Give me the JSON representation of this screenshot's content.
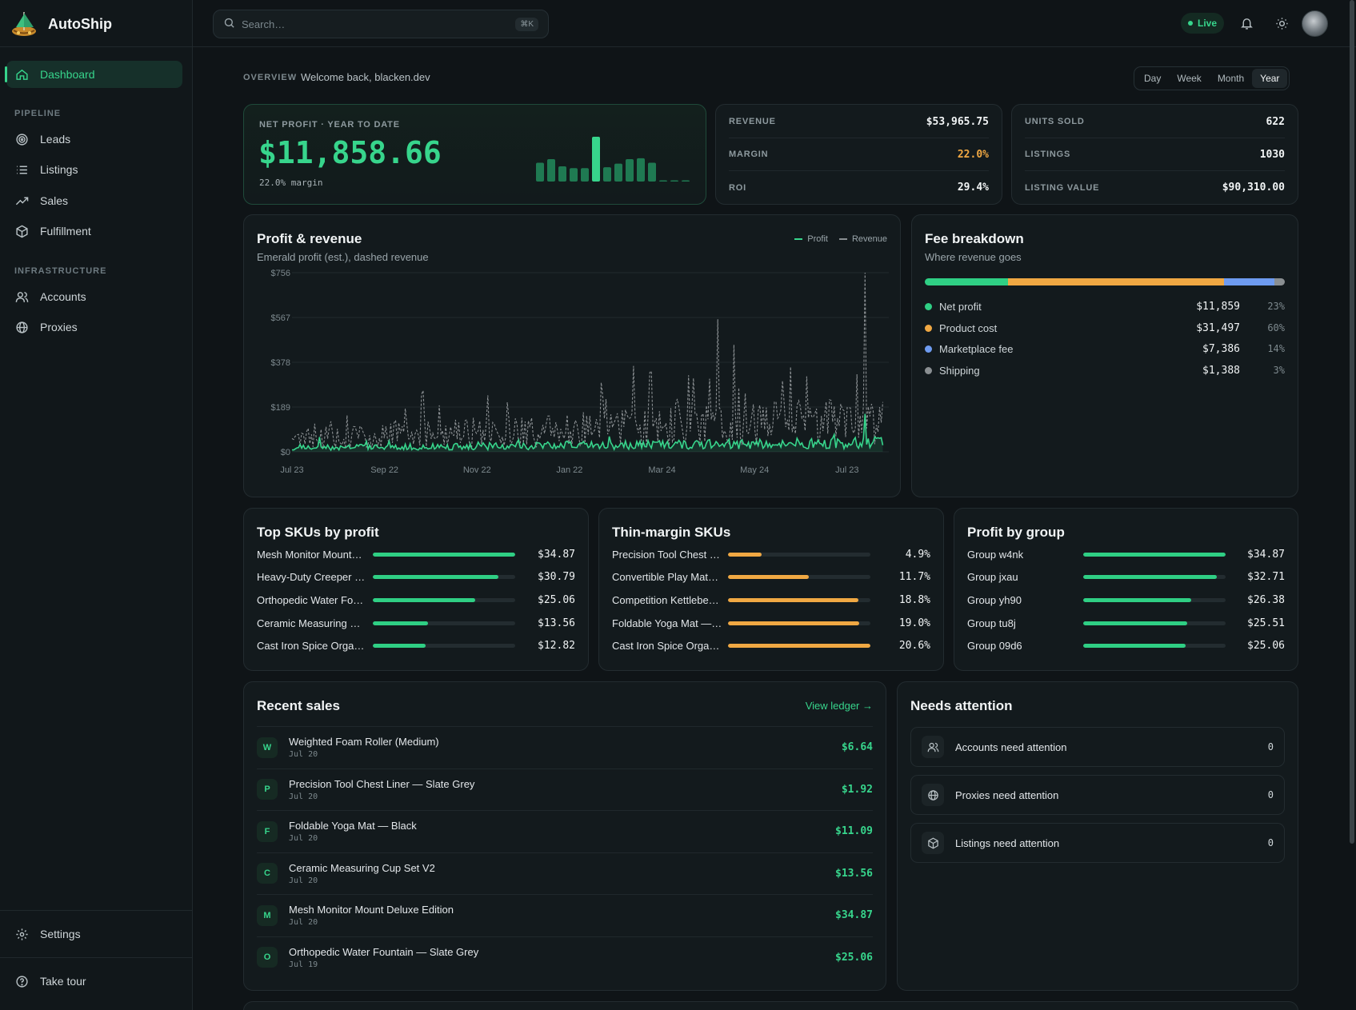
{
  "app": {
    "name": "AutoShip"
  },
  "sidebar": {
    "dashboard": "Dashboard",
    "pipeline_title": "PIPELINE",
    "pipeline": [
      {
        "label": "Leads",
        "icon": "target-icon"
      },
      {
        "label": "Listings",
        "icon": "list-icon"
      },
      {
        "label": "Sales",
        "icon": "trending-up-icon"
      },
      {
        "label": "Fulfillment",
        "icon": "package-icon"
      }
    ],
    "infrastructure_title": "INFRASTRUCTURE",
    "infrastructure": [
      {
        "label": "Accounts",
        "icon": "users-icon"
      },
      {
        "label": "Proxies",
        "icon": "globe-icon"
      }
    ],
    "settings": "Settings",
    "take_tour": "Take tour"
  },
  "topbar": {
    "search_placeholder": "Search…",
    "shortcut": "⌘K",
    "live": "Live"
  },
  "overview": {
    "label": "OVERVIEW",
    "welcome": "Welcome back, blacken.dev",
    "ranges": [
      "Day",
      "Week",
      "Month",
      "Year"
    ],
    "active_range": "Year"
  },
  "hero": {
    "label": "NET PROFIT · YEAR TO DATE",
    "value": "$11,858.66",
    "margin": "22.0% margin",
    "spark": [
      0.42,
      0.5,
      0.34,
      0.3,
      0.3,
      1.0,
      0.32,
      0.4,
      0.5,
      0.52,
      0.42,
      0.02,
      0.02,
      0.02
    ]
  },
  "stats_left": [
    {
      "key": "REVENUE",
      "value": "$53,965.75",
      "color": "#f1f4f5"
    },
    {
      "key": "MARGIN",
      "value": "22.0%",
      "color": "#f0a843"
    },
    {
      "key": "ROI",
      "value": "29.4%",
      "color": "#f1f4f5"
    }
  ],
  "stats_right": [
    {
      "key": "UNITS SOLD",
      "value": "622"
    },
    {
      "key": "LISTINGS",
      "value": "1030"
    },
    {
      "key": "LISTING VALUE",
      "value": "$90,310.00"
    }
  ],
  "profit_chart": {
    "title": "Profit & revenue",
    "subtitle": "Emerald profit (est.), dashed revenue",
    "legend": [
      "Profit",
      "Revenue"
    ]
  },
  "chart_data": {
    "type": "line",
    "y_ticks": [
      "$756",
      "$567",
      "$378",
      "$189",
      "$0"
    ],
    "ylim": [
      0,
      756
    ],
    "x_ticks": [
      "Jul 23",
      "Sep 22",
      "Nov 22",
      "Jan 22",
      "Mar 24",
      "May 24",
      "Jul 23"
    ],
    "series": [
      {
        "name": "Profit",
        "color": "#37d58c",
        "style": "solid",
        "typical_range": [
          10,
          60
        ],
        "peak": 160
      },
      {
        "name": "Revenue",
        "color": "#8a8f92",
        "style": "dashed",
        "typical_range": [
          20,
          250
        ],
        "peak": 756
      }
    ],
    "days": 366
  },
  "fees": {
    "title": "Fee breakdown",
    "subtitle": "Where revenue goes",
    "items": [
      {
        "name": "Net profit",
        "amount": "$11,859",
        "pct": "23%",
        "share": 0.23,
        "color": "#2fcf84"
      },
      {
        "name": "Product cost",
        "amount": "$31,497",
        "pct": "60%",
        "share": 0.6,
        "color": "#f0a843"
      },
      {
        "name": "Marketplace fee",
        "amount": "$7,386",
        "pct": "14%",
        "share": 0.14,
        "color": "#6e9bf0"
      },
      {
        "name": "Shipping",
        "amount": "$1,388",
        "pct": "3%",
        "share": 0.03,
        "color": "#8a8f92"
      }
    ]
  },
  "top_skus": {
    "title": "Top SKUs by profit",
    "items": [
      {
        "name": "Mesh Monitor Mount…",
        "value": "$34.87",
        "fill": 1.0
      },
      {
        "name": "Heavy-Duty Creeper …",
        "value": "$30.79",
        "fill": 0.883
      },
      {
        "name": "Orthopedic Water Fo…",
        "value": "$25.06",
        "fill": 0.719
      },
      {
        "name": "Ceramic Measuring …",
        "value": "$13.56",
        "fill": 0.389
      },
      {
        "name": "Cast Iron Spice Orga…",
        "value": "$12.82",
        "fill": 0.368
      }
    ]
  },
  "thin_skus": {
    "title": "Thin-margin SKUs",
    "items": [
      {
        "name": "Precision Tool Chest …",
        "value": "4.9%",
        "fill": 0.238
      },
      {
        "name": "Convertible Play Mat…",
        "value": "11.7%",
        "fill": 0.568
      },
      {
        "name": "Competition Kettlebe…",
        "value": "18.8%",
        "fill": 0.913
      },
      {
        "name": "Foldable Yoga Mat —…",
        "value": "19.0%",
        "fill": 0.922
      },
      {
        "name": "Cast Iron Spice Orga…",
        "value": "20.6%",
        "fill": 1.0
      }
    ]
  },
  "groups": {
    "title": "Profit by group",
    "items": [
      {
        "name": "Group w4nk",
        "value": "$34.87",
        "fill": 1.0
      },
      {
        "name": "Group jxau",
        "value": "$32.71",
        "fill": 0.938
      },
      {
        "name": "Group yh90",
        "value": "$26.38",
        "fill": 0.757
      },
      {
        "name": "Group tu8j",
        "value": "$25.51",
        "fill": 0.732
      },
      {
        "name": "Group 09d6",
        "value": "$25.06",
        "fill": 0.719
      }
    ]
  },
  "recent_sales": {
    "title": "Recent sales",
    "view_ledger": "View ledger →",
    "items": [
      {
        "initial": "W",
        "name": "Weighted Foam Roller (Medium)",
        "date": "Jul 20",
        "amount": "$6.64"
      },
      {
        "initial": "P",
        "name": "Precision Tool Chest Liner — Slate Grey",
        "date": "Jul 20",
        "amount": "$1.92"
      },
      {
        "initial": "F",
        "name": "Foldable Yoga Mat — Black",
        "date": "Jul 20",
        "amount": "$11.09"
      },
      {
        "initial": "C",
        "name": "Ceramic Measuring Cup Set V2",
        "date": "Jul 20",
        "amount": "$13.56"
      },
      {
        "initial": "M",
        "name": "Mesh Monitor Mount Deluxe Edition",
        "date": "Jul 20",
        "amount": "$34.87"
      },
      {
        "initial": "O",
        "name": "Orthopedic Water Fountain — Slate Grey",
        "date": "Jul 19",
        "amount": "$25.06"
      }
    ]
  },
  "attention": {
    "title": "Needs attention",
    "items": [
      {
        "label": "Accounts need attention",
        "count": "0",
        "icon": "users-icon"
      },
      {
        "label": "Proxies need attention",
        "count": "0",
        "icon": "globe-icon"
      },
      {
        "label": "Listings need attention",
        "count": "0",
        "icon": "package-icon"
      }
    ]
  }
}
